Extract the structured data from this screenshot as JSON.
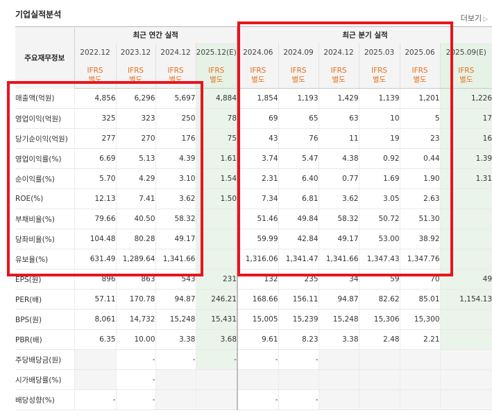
{
  "title": "기업실적분석",
  "more_label": "더보기",
  "header": {
    "row_header": "주요재무정보",
    "annual_group": "최근 연간 실적",
    "quarter_group": "최근 분기 실적",
    "annual_periods": [
      "2022.12",
      "2023.12",
      "2024.12",
      "2025.12(E)"
    ],
    "quarter_periods": [
      "2024.06",
      "2024.09",
      "2024.12",
      "2025.03",
      "2025.06",
      "2025.09(E)"
    ],
    "ifrs_top": "IFRS",
    "ifrs_bottom": "별도"
  },
  "rows": [
    {
      "label": "매출액(억원)",
      "values": [
        "4,856",
        "6,296",
        "5,697",
        "4,884",
        "1,854",
        "1,193",
        "1,429",
        "1,139",
        "1,201",
        "1,226"
      ]
    },
    {
      "label": "영업이익(억원)",
      "values": [
        "325",
        "323",
        "250",
        "78",
        "69",
        "65",
        "63",
        "10",
        "5",
        "17"
      ]
    },
    {
      "label": "당기순이익(억원)",
      "values": [
        "277",
        "270",
        "176",
        "75",
        "43",
        "76",
        "11",
        "19",
        "23",
        "16"
      ]
    },
    {
      "label": "영업이익률(%)",
      "values": [
        "6.69",
        "5.13",
        "4.39",
        "1.61",
        "3.74",
        "5.47",
        "4.38",
        "0.92",
        "0.44",
        "1.39"
      ]
    },
    {
      "label": "순이익률(%)",
      "values": [
        "5.70",
        "4.29",
        "3.10",
        "1.54",
        "2.31",
        "6.40",
        "0.77",
        "1.69",
        "1.90",
        "1.31"
      ]
    },
    {
      "label": "ROE(%)",
      "values": [
        "12.13",
        "7.41",
        "3.62",
        "1.50",
        "7.34",
        "6.81",
        "3.62",
        "3.05",
        "2.63",
        ""
      ]
    },
    {
      "label": "부채비율(%)",
      "values": [
        "79.66",
        "40.50",
        "58.32",
        "",
        "51.46",
        "49.84",
        "58.32",
        "50.72",
        "51.30",
        ""
      ]
    },
    {
      "label": "당좌비율(%)",
      "values": [
        "104.48",
        "80.28",
        "49.17",
        "",
        "59.99",
        "42.84",
        "49.17",
        "53.00",
        "38.92",
        ""
      ]
    },
    {
      "label": "유보율(%)",
      "values": [
        "631.49",
        "1,289.64",
        "1,341.66",
        "",
        "1,316.06",
        "1,341.47",
        "1,341.66",
        "1,347.43",
        "1,347.76",
        ""
      ]
    },
    {
      "label": "EPS(원)",
      "values": [
        "896",
        "863",
        "543",
        "231",
        "132",
        "235",
        "34",
        "59",
        "70",
        "49"
      ]
    },
    {
      "label": "PER(배)",
      "values": [
        "57.11",
        "170.78",
        "94.87",
        "246.21",
        "168.66",
        "156.11",
        "94.87",
        "82.62",
        "85.01",
        "1,154.13"
      ]
    },
    {
      "label": "BPS(원)",
      "values": [
        "8,061",
        "14,732",
        "15,248",
        "15,431",
        "15,005",
        "15,239",
        "15,248",
        "15,306",
        "15,300",
        ""
      ]
    },
    {
      "label": "PBR(배)",
      "values": [
        "6.35",
        "10.00",
        "3.38",
        "3.68",
        "9.61",
        "8.23",
        "3.38",
        "2.48",
        "2.21",
        ""
      ]
    },
    {
      "label": "주당배당금(원)",
      "values": [
        "",
        "-",
        "-",
        "-",
        "-",
        "-",
        "",
        "",
        "",
        ""
      ]
    },
    {
      "label": "시가배당률(%)",
      "values": [
        "",
        "-",
        "",
        "",
        "",
        "",
        "",
        "",
        "",
        ""
      ]
    },
    {
      "label": "배당성향(%)",
      "values": [
        "-",
        "-",
        "",
        "",
        "-",
        "-",
        "",
        "",
        "",
        ""
      ]
    }
  ],
  "colors": {
    "highlight_box": "#e8141c",
    "ifrs_text": "#e8701c",
    "estimate_bg": "#eaf4ea"
  }
}
